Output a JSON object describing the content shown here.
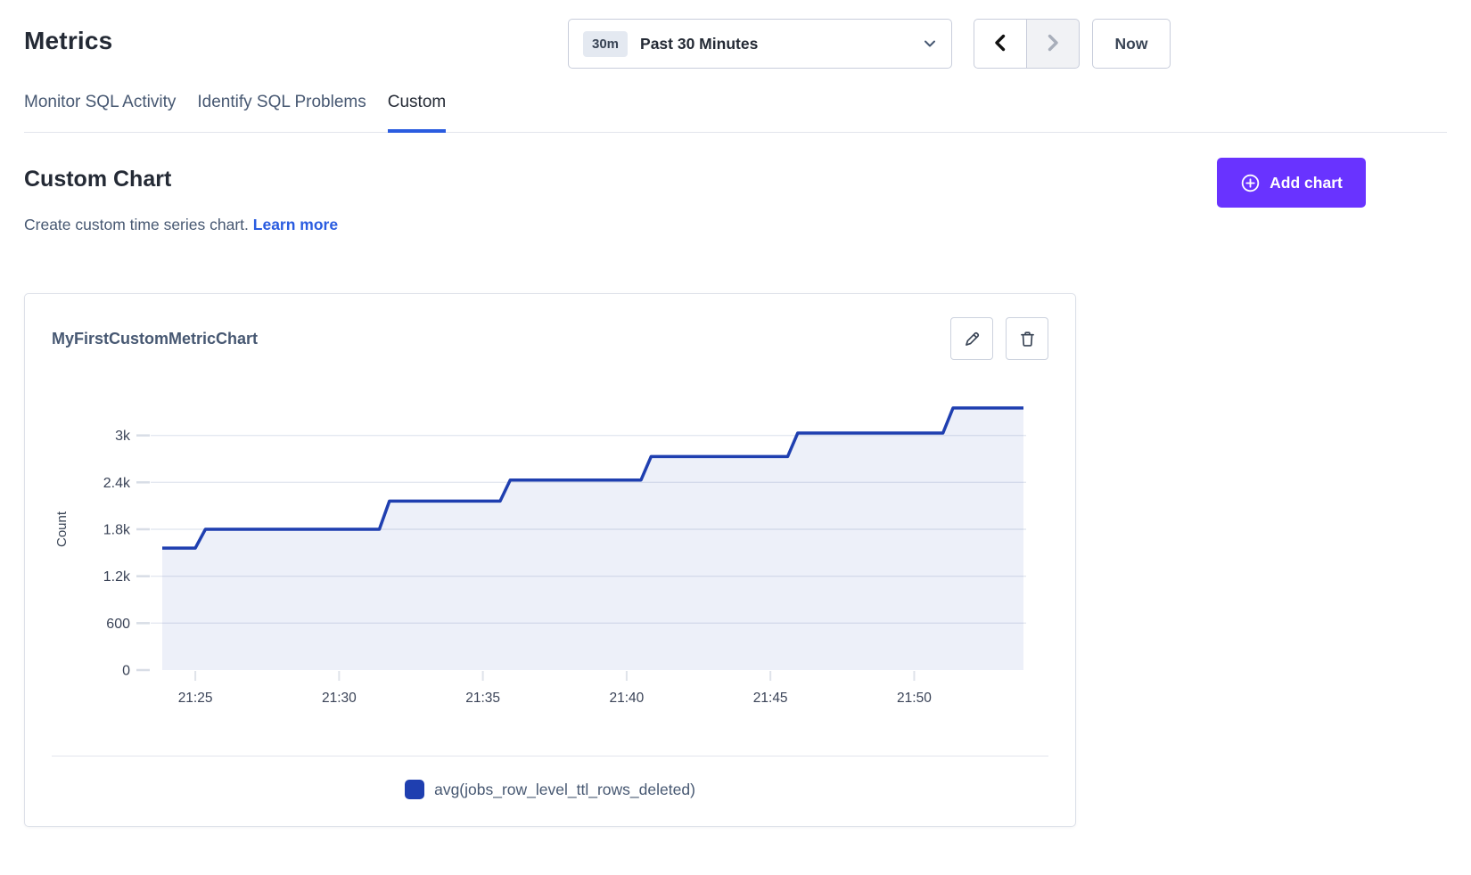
{
  "page": {
    "title": "Metrics"
  },
  "time_controls": {
    "range_badge": "30m",
    "range_label": "Past 30 Minutes",
    "now_label": "Now"
  },
  "tabs": [
    {
      "label": "Monitor SQL Activity",
      "active": false
    },
    {
      "label": "Identify SQL Problems",
      "active": false
    },
    {
      "label": "Custom",
      "active": true
    }
  ],
  "custom_section": {
    "heading": "Custom Chart",
    "description": "Create custom time series chart.",
    "learn_more_label": "Learn more",
    "add_chart_label": "Add chart"
  },
  "chart_card": {
    "title": "MyFirstCustomMetricChart"
  },
  "colors": {
    "accent_purple": "#6933ff",
    "link_blue": "#2a5ce0",
    "series_blue": "#1f3fb0"
  },
  "chart_data": {
    "type": "area",
    "title": "MyFirstCustomMetricChart",
    "xlabel": "",
    "ylabel": "Count",
    "grid": "horizontal",
    "legend_position": "bottom",
    "ylim": [
      0,
      3600
    ],
    "x_range_minutes_after_2100": [
      23.85,
      53.8
    ],
    "y_ticks": [
      {
        "value": 0,
        "label": "0"
      },
      {
        "value": 600,
        "label": "600"
      },
      {
        "value": 1200,
        "label": "1.2k"
      },
      {
        "value": 1800,
        "label": "1.8k"
      },
      {
        "value": 2400,
        "label": "2.4k"
      },
      {
        "value": 3000,
        "label": "3k"
      }
    ],
    "x_ticks": [
      {
        "minute": 25,
        "label": "21:25"
      },
      {
        "minute": 30,
        "label": "21:30"
      },
      {
        "minute": 35,
        "label": "21:35"
      },
      {
        "minute": 40,
        "label": "21:40"
      },
      {
        "minute": 45,
        "label": "21:45"
      },
      {
        "minute": 50,
        "label": "21:50"
      }
    ],
    "series": [
      {
        "name": "avg(jobs_row_level_ttl_rows_deleted)",
        "color": "#1f3fb0",
        "fill_opacity": 0.08,
        "points": [
          {
            "t": 23.85,
            "v": 1560
          },
          {
            "t": 25.0,
            "v": 1560
          },
          {
            "t": 25.35,
            "v": 1800
          },
          {
            "t": 31.4,
            "v": 1800
          },
          {
            "t": 31.75,
            "v": 2160
          },
          {
            "t": 35.6,
            "v": 2160
          },
          {
            "t": 35.95,
            "v": 2430
          },
          {
            "t": 40.5,
            "v": 2430
          },
          {
            "t": 40.85,
            "v": 2730
          },
          {
            "t": 45.6,
            "v": 2730
          },
          {
            "t": 45.95,
            "v": 3030
          },
          {
            "t": 51.0,
            "v": 3030
          },
          {
            "t": 51.35,
            "v": 3350
          },
          {
            "t": 53.8,
            "v": 3350
          }
        ]
      }
    ]
  }
}
